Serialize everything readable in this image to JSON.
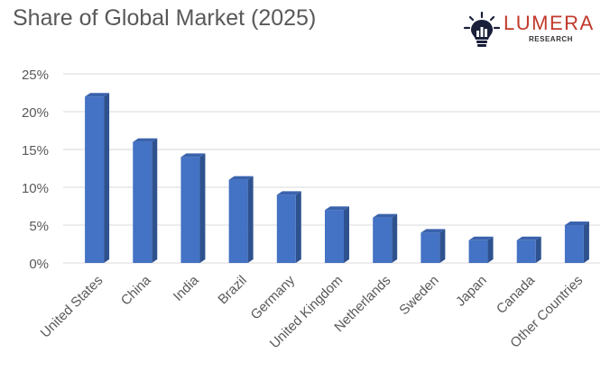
{
  "title": "Share of Global Market (2025)",
  "logo": {
    "name": "LUMERA",
    "sub": "RESEARCH"
  },
  "colors": {
    "bar_front": "#4472c4",
    "bar_side": "#2f528f",
    "bar_top": "#3a62ad",
    "grid": "#d9d9d9",
    "text": "#595959"
  },
  "chart_data": {
    "type": "bar",
    "title": "Share of Global Market (2025)",
    "xlabel": "",
    "ylabel": "",
    "ylim": [
      0,
      25
    ],
    "y_ticks": [
      "0%",
      "5%",
      "10%",
      "15%",
      "20%",
      "25%"
    ],
    "y_tick_values": [
      0,
      5,
      10,
      15,
      20,
      25
    ],
    "grid": true,
    "categories": [
      "United States",
      "China",
      "India",
      "Brazil",
      "Germany",
      "United Kingdom",
      "Netherlands",
      "Sweden",
      "Japan",
      "Canada",
      "Other Countries"
    ],
    "values": [
      22,
      16,
      14,
      11,
      9,
      7,
      6,
      4,
      3,
      3,
      5
    ]
  }
}
